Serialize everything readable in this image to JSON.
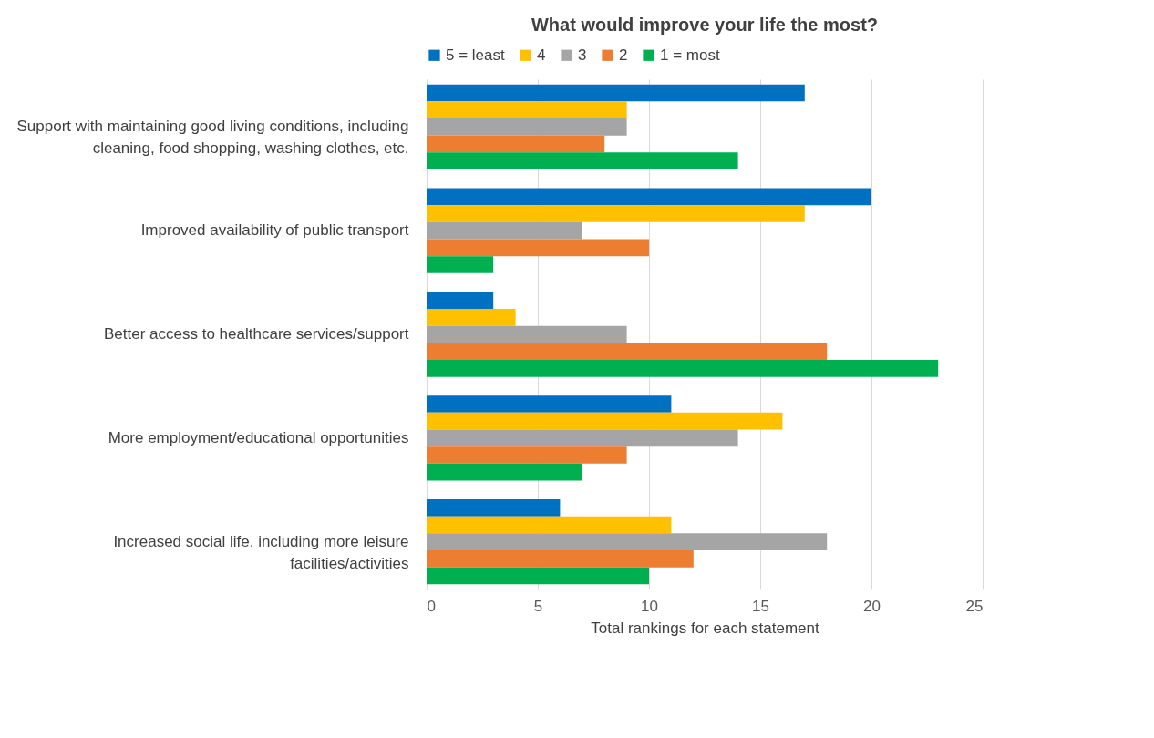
{
  "chart_data": {
    "type": "bar",
    "orientation": "horizontal",
    "title": "What would improve your life the most?",
    "xlabel": "Total rankings for each statement",
    "categories": [
      "Support with maintaining good living conditions, including cleaning, food shopping, washing clothes, etc.",
      "Improved availability of public transport",
      "Better access to healthcare services/support",
      "More employment/educational opportunities",
      "Increased social life, including more leisure facilities/activities"
    ],
    "series": [
      {
        "name": "5 = least",
        "color": "#0070c0",
        "values": [
          17,
          20,
          3,
          11,
          6
        ]
      },
      {
        "name": "4",
        "color": "#ffc000",
        "values": [
          9,
          17,
          4,
          16,
          11
        ]
      },
      {
        "name": "3",
        "color": "#a5a5a5",
        "values": [
          9,
          7,
          9,
          14,
          18
        ]
      },
      {
        "name": "2",
        "color": "#ed7d31",
        "values": [
          8,
          10,
          18,
          9,
          12
        ]
      },
      {
        "name": "1 = most",
        "color": "#00b050",
        "values": [
          14,
          3,
          23,
          7,
          10
        ]
      }
    ],
    "xlim": [
      0,
      25
    ],
    "xticks": [
      0,
      5,
      10,
      15,
      20,
      25
    ],
    "grid": "x",
    "legend": "top"
  }
}
